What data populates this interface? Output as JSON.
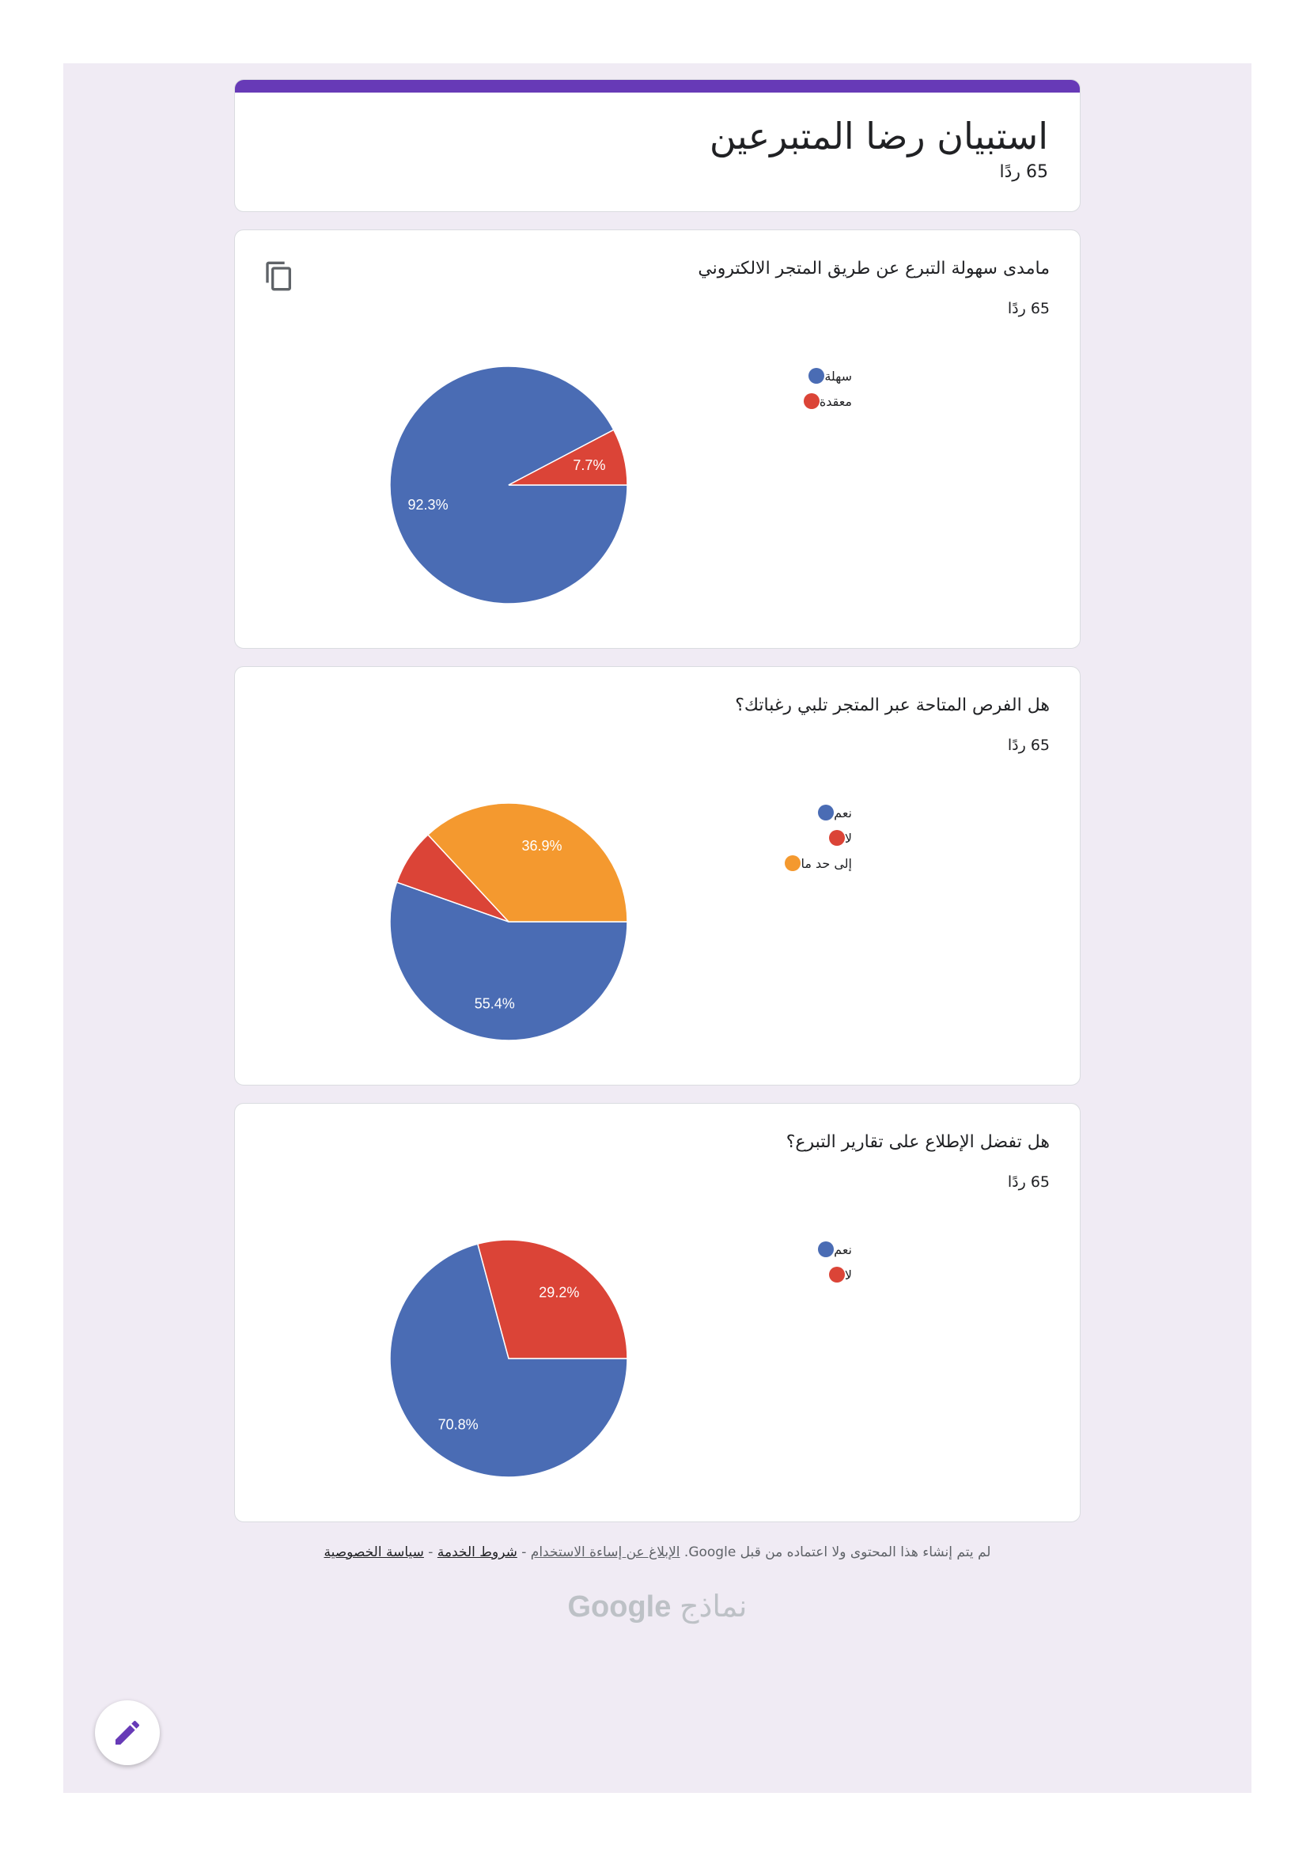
{
  "form": {
    "title": "استبيان رضا المتبرعين",
    "response_count": "65 ردًا"
  },
  "questions": [
    {
      "title": "مامدى سهولة التبرع عن طريق المتجر الالكتروني",
      "response_count": "65 ردًا",
      "copy_icon": "copy-icon"
    },
    {
      "title": "هل الفرص المتاحة عبر المتجر تلبي رغباتك؟",
      "response_count": "65 ردًا"
    },
    {
      "title": "هل تفضل الإطلاع على تقارير التبرع؟",
      "response_count": "65 ردًا"
    }
  ],
  "chart_data": [
    {
      "type": "pie",
      "categories": [
        "سهلة",
        "معقدة"
      ],
      "values": [
        92.3,
        7.7
      ],
      "labels": [
        "92.3%",
        "7.7%"
      ],
      "colors": [
        "#4a6cb4",
        "#db4437"
      ]
    },
    {
      "type": "pie",
      "categories": [
        "نعم",
        "لا",
        "إلى حد ما"
      ],
      "values": [
        55.4,
        7.7,
        36.9
      ],
      "labels": [
        "55.4%",
        "",
        "36.9%"
      ],
      "colors": [
        "#4a6cb4",
        "#db4437",
        "#f4992f"
      ]
    },
    {
      "type": "pie",
      "categories": [
        "نعم",
        "لا"
      ],
      "values": [
        70.8,
        29.2
      ],
      "labels": [
        "70.8%",
        "29.2%"
      ],
      "colors": [
        "#4a6cb4",
        "#db4437"
      ]
    }
  ],
  "footer": {
    "note": "لم يتم إنشاء هذا المحتوى ولا اعتماده من قبل Google.",
    "report_abuse": "الإبلاغ عن إساءة الاستخدام",
    "terms": "شروط الخدمة",
    "privacy": "سياسة الخصوصية",
    "separator": " - ",
    "logo_google": "Google",
    "logo_forms": "نماذج"
  },
  "fab": {
    "icon": "pencil-icon"
  }
}
